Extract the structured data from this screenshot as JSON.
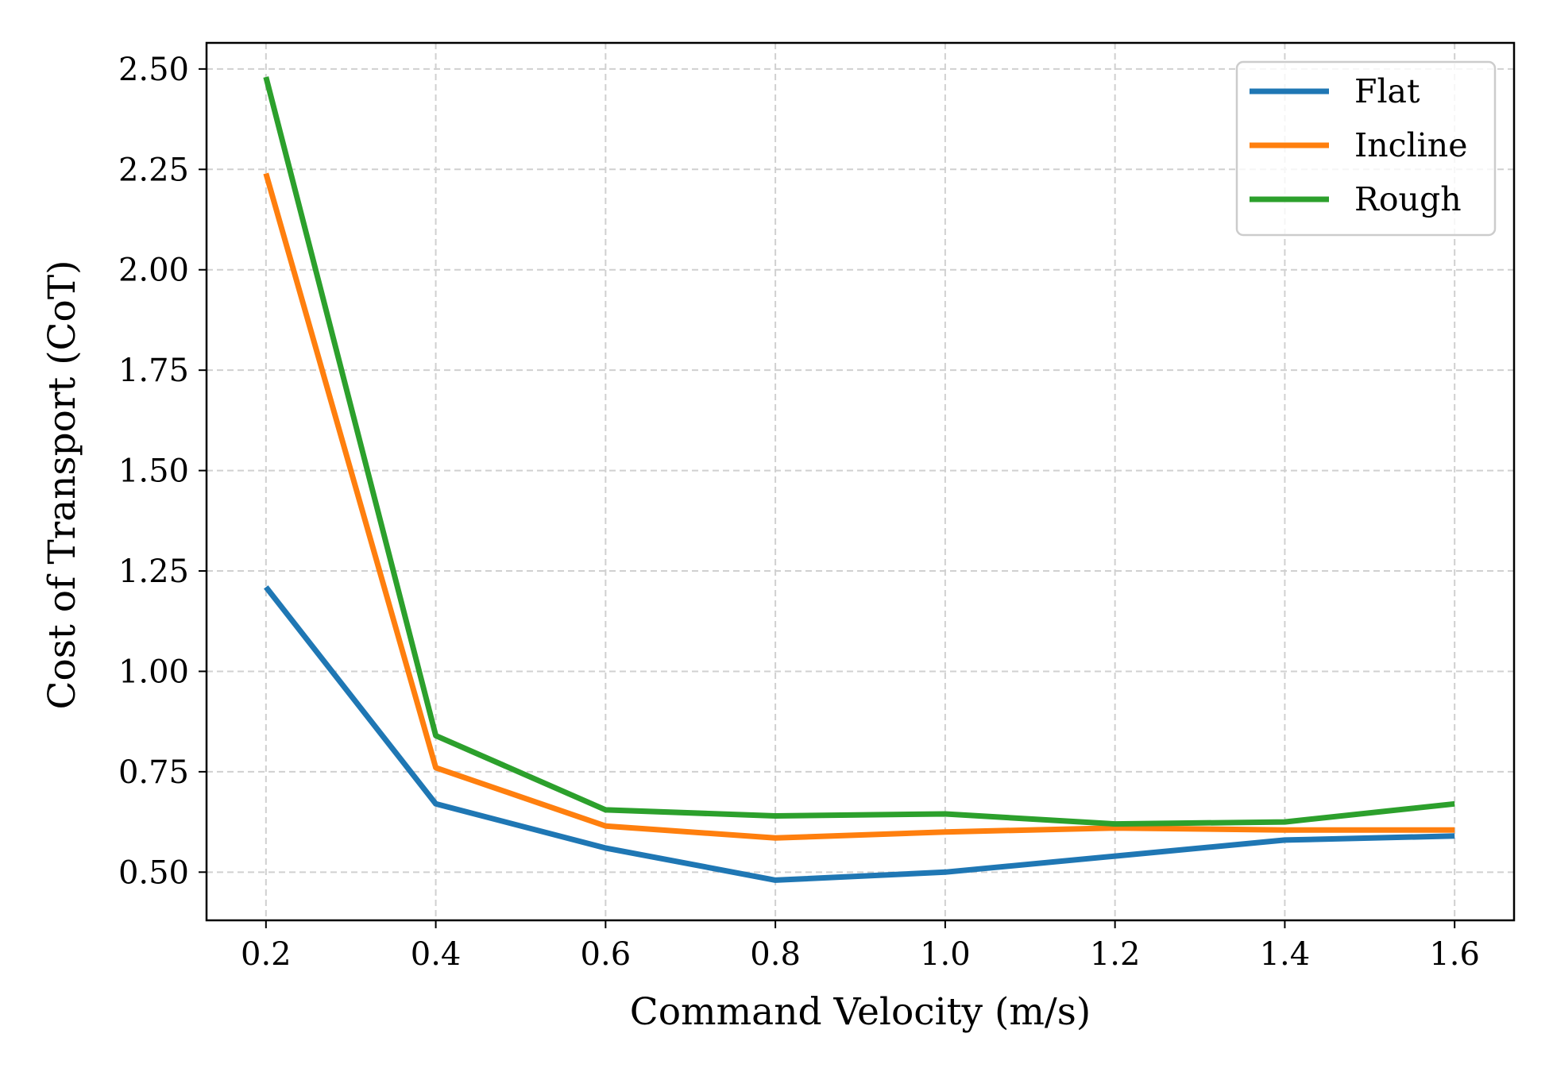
{
  "chart_data": {
    "type": "line",
    "xlabel": "Command Velocity (m/s)",
    "ylabel": "Cost of Transport (CoT)",
    "x": [
      0.2,
      0.4,
      0.6,
      0.8,
      1.0,
      1.2,
      1.4,
      1.6
    ],
    "xlim": [
      0.13,
      1.67
    ],
    "ylim": [
      0.38,
      2.565
    ],
    "xticks": [
      0.2,
      0.4,
      0.6,
      0.8,
      1.0,
      1.2,
      1.4,
      1.6
    ],
    "xtick_labels": [
      "0.2",
      "0.4",
      "0.6",
      "0.8",
      "1.0",
      "1.2",
      "1.4",
      "1.6"
    ],
    "yticks": [
      0.5,
      0.75,
      1.0,
      1.25,
      1.5,
      1.75,
      2.0,
      2.25,
      2.5
    ],
    "ytick_labels": [
      "0.50",
      "0.75",
      "1.00",
      "1.25",
      "1.50",
      "1.75",
      "2.00",
      "2.25",
      "2.50"
    ],
    "grid": true,
    "legend_position": "top-right",
    "series": [
      {
        "name": "Flat",
        "color": "#1f77b4",
        "values": [
          1.21,
          0.67,
          0.56,
          0.48,
          0.5,
          0.54,
          0.58,
          0.59
        ]
      },
      {
        "name": "Incline",
        "color": "#ff7f0e",
        "values": [
          2.24,
          0.76,
          0.615,
          0.585,
          0.6,
          0.61,
          0.605,
          0.605
        ]
      },
      {
        "name": "Rough",
        "color": "#2ca02c",
        "values": [
          2.48,
          0.84,
          0.655,
          0.64,
          0.645,
          0.62,
          0.625,
          0.67
        ]
      }
    ]
  }
}
